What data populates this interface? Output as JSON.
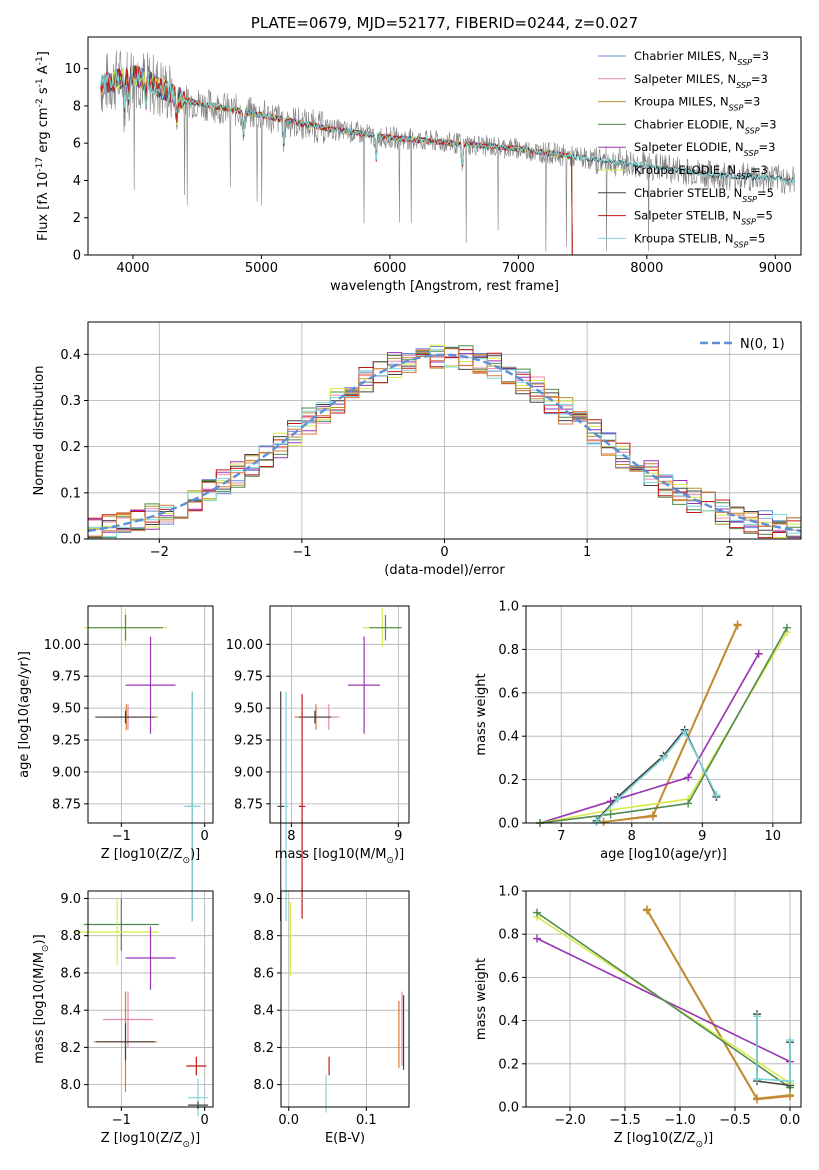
{
  "chart_data": [
    {
      "type": "line",
      "title": "PLATE=0679, MJD=52177, FIBERID=0244, z=0.027",
      "xlabel": "wavelength [Angstrom, rest frame]",
      "ylabel": "Flux [f_λ 10^-17 erg cm^-2 s^-1 A^-1]",
      "xlim": [
        3650,
        9200
      ],
      "ylim": [
        0,
        11.7
      ],
      "xticks": [
        4000,
        5000,
        6000,
        7000,
        8000,
        9000
      ],
      "yticks": [
        0,
        2,
        4,
        6,
        8,
        10
      ],
      "grid": false,
      "legend_position": "top-right",
      "data_color": "#808080",
      "continuum": [
        [
          3750,
          9.1
        ],
        [
          4000,
          9.7
        ],
        [
          4400,
          8.3
        ],
        [
          5000,
          7.5
        ],
        [
          5500,
          6.8
        ],
        [
          6000,
          6.3
        ],
        [
          6500,
          6.0
        ],
        [
          7000,
          5.7
        ],
        [
          7500,
          5.2
        ],
        [
          8000,
          4.8
        ],
        [
          8500,
          4.3
        ],
        [
          9000,
          4.1
        ],
        [
          9150,
          4.0
        ]
      ],
      "series": [
        {
          "name": "Chabrier MILES, N_SSP=3",
          "color": "#6a8cd8"
        },
        {
          "name": "Salpeter MILES, N_SSP=3",
          "color": "#e889b3"
        },
        {
          "name": "Kroupa MILES, N_SSP=3",
          "color": "#b8902e"
        },
        {
          "name": "Chabrier ELODIE, N_SSP=3",
          "color": "#4f8a4f"
        },
        {
          "name": "Salpeter ELODIE, N_SSP=3",
          "color": "#9a33b3"
        },
        {
          "name": "Kroupa ELODIE, N_SSP=3",
          "color": "#d8ea48"
        },
        {
          "name": "Chabrier STELIB, N_SSP=5",
          "color": "#444444"
        },
        {
          "name": "Salpeter STELIB, N_SSP=5",
          "color": "#c21818"
        },
        {
          "name": "Kroupa STELIB, N_SSP=5",
          "color": "#7ed6d9"
        }
      ]
    },
    {
      "type": "line",
      "xlabel": "(data-model)/error",
      "ylabel": "Normed distribution",
      "xlim": [
        -2.5,
        2.5
      ],
      "ylim": [
        0,
        0.47
      ],
      "xticks": [
        -2,
        -1,
        0,
        1,
        2
      ],
      "yticks": [
        0.0,
        0.1,
        0.2,
        0.3,
        0.4
      ],
      "grid": true,
      "legend_position": "top-right",
      "reference_curve": {
        "name": "N(0, 1)",
        "color": "#5b8fd6"
      }
    },
    {
      "type": "scatter",
      "xlabel": "Z [log10(Z/Z_⊙)]",
      "ylabel": "age  [log10(age/yr)]",
      "xlim": [
        -1.4,
        0.1
      ],
      "ylim": [
        8.6,
        10.3
      ],
      "xticks": [
        -1,
        0
      ],
      "yticks": [
        8.75,
        9.0,
        9.25,
        9.5,
        9.75,
        10.0
      ],
      "grid": true,
      "points": [
        {
          "color": "#d8ea48",
          "x": -0.95,
          "y": 10.13,
          "xerr": 0.5,
          "yerr": 0.15
        },
        {
          "color": "#4f8a4f",
          "x": -0.95,
          "y": 10.13,
          "xerr": 0.45,
          "yerr": 0.1
        },
        {
          "color": "#9a33b3",
          "x": -0.65,
          "y": 9.68,
          "xerr": 0.3,
          "yerr": 0.38
        },
        {
          "color": "#e889b3",
          "x": -0.92,
          "y": 9.43,
          "xerr": 0.2,
          "yerr": 0.1
        },
        {
          "color": "#d87a3a",
          "x": -0.94,
          "y": 9.43,
          "xerr": 0.38,
          "yerr": 0.1
        },
        {
          "color": "#444444",
          "x": -0.95,
          "y": 9.43,
          "xerr": 0.35,
          "yerr": 0.05
        },
        {
          "color": "#444444",
          "x": -0.15,
          "y": 8.73,
          "xerr": 0.05,
          "yerr": 0.9
        },
        {
          "color": "#7ed6d9",
          "x": -0.15,
          "y": 8.73,
          "xerr": 0.1,
          "yerr": 0.9
        }
      ]
    },
    {
      "type": "scatter",
      "xlabel": "mass [log10(M/M_⊙)]",
      "ylabel": "",
      "xlim": [
        7.8,
        9.1
      ],
      "ylim": [
        8.6,
        10.3
      ],
      "xticks": [
        8,
        9
      ],
      "yticks": [
        8.75,
        9.0,
        9.25,
        9.5,
        9.75,
        10.0
      ],
      "grid": true,
      "points": [
        {
          "color": "#d8ea48",
          "x": 8.85,
          "y": 10.13,
          "xerr": 0.18,
          "yerr": 0.15
        },
        {
          "color": "#4f8a4f",
          "x": 8.88,
          "y": 10.13,
          "xerr": 0.15,
          "yerr": 0.1
        },
        {
          "color": "#9a33b3",
          "x": 8.68,
          "y": 9.68,
          "xerr": 0.15,
          "yerr": 0.38
        },
        {
          "color": "#d87a3a",
          "x": 8.23,
          "y": 9.43,
          "xerr": 0.2,
          "yerr": 0.1
        },
        {
          "color": "#e889b3",
          "x": 8.35,
          "y": 9.43,
          "xerr": 0.1,
          "yerr": 0.1
        },
        {
          "color": "#444444",
          "x": 8.22,
          "y": 9.43,
          "xerr": 0.15,
          "yerr": 0.05
        },
        {
          "color": "#c21818",
          "x": 8.1,
          "y": 8.73,
          "xerr": 0.03,
          "yerr": 0.88
        },
        {
          "color": "#7ed6d9",
          "x": 7.95,
          "y": 8.73,
          "xerr": 0.02,
          "yerr": 0.9
        },
        {
          "color": "#444444",
          "x": 7.9,
          "y": 8.73,
          "xerr": 0.03,
          "yerr": 0.9
        }
      ]
    },
    {
      "type": "line",
      "xlabel": "age  [log10(age/yr)]",
      "ylabel": "mass weight",
      "xlim": [
        6.5,
        10.4
      ],
      "ylim": [
        0,
        1.0
      ],
      "xticks": [
        7,
        8,
        9,
        10
      ],
      "yticks": [
        0.0,
        0.2,
        0.4,
        0.6,
        0.8,
        1.0
      ],
      "grid": true,
      "series": [
        {
          "color": "#d87a3a",
          "x": [
            7.6,
            8.3,
            9.5
          ],
          "y": [
            0.005,
            0.03,
            0.91
          ]
        },
        {
          "color": "#b8902e",
          "x": [
            7.6,
            8.3,
            9.5
          ],
          "y": [
            0.005,
            0.035,
            0.915
          ]
        },
        {
          "color": "#9a33b3",
          "x": [
            6.7,
            7.7,
            8.8,
            9.8
          ],
          "y": [
            0.0,
            0.1,
            0.21,
            0.78
          ]
        },
        {
          "color": "#d8ea48",
          "x": [
            6.7,
            7.7,
            8.8,
            10.2
          ],
          "y": [
            0.0,
            0.06,
            0.11,
            0.88
          ]
        },
        {
          "color": "#4f8a4f",
          "x": [
            6.7,
            7.7,
            8.8,
            10.2
          ],
          "y": [
            0.0,
            0.04,
            0.09,
            0.9
          ]
        },
        {
          "color": "#444444",
          "x": [
            7.5,
            7.8,
            8.45,
            8.75,
            9.2
          ],
          "y": [
            0.01,
            0.12,
            0.31,
            0.43,
            0.12
          ]
        },
        {
          "color": "#7ed6d9",
          "x": [
            7.5,
            7.8,
            8.45,
            8.75,
            9.2
          ],
          "y": [
            0.005,
            0.11,
            0.3,
            0.42,
            0.13
          ]
        }
      ]
    },
    {
      "type": "scatter",
      "xlabel": "Z [log10(Z/Z_⊙)]",
      "ylabel": "mass [log10(M/M_⊙)]",
      "xlim": [
        -1.4,
        0.1
      ],
      "ylim": [
        7.88,
        9.04
      ],
      "xticks": [
        -1,
        0
      ],
      "yticks": [
        8.0,
        8.2,
        8.4,
        8.6,
        8.8,
        9.0
      ],
      "grid": true,
      "points": [
        {
          "color": "#4f8a4f",
          "x": -1.0,
          "y": 8.86,
          "xerr": 0.45,
          "yerr": 0.14
        },
        {
          "color": "#d8ea48",
          "x": -1.05,
          "y": 8.82,
          "xerr": 0.5,
          "yerr": 0.18
        },
        {
          "color": "#9a33b3",
          "x": -0.65,
          "y": 8.68,
          "xerr": 0.3,
          "yerr": 0.17
        },
        {
          "color": "#e889b3",
          "x": -0.92,
          "y": 8.35,
          "xerr": 0.3,
          "yerr": 0.15
        },
        {
          "color": "#d87a3a",
          "x": -0.95,
          "y": 8.23,
          "xerr": 0.38,
          "yerr": 0.27
        },
        {
          "color": "#444444",
          "x": -0.95,
          "y": 8.23,
          "xerr": 0.35,
          "yerr": 0.1
        },
        {
          "color": "#c21818",
          "x": -0.1,
          "y": 8.1,
          "xerr": 0.12,
          "yerr": 0.05
        },
        {
          "color": "#7ed6d9",
          "x": -0.08,
          "y": 7.93,
          "xerr": 0.12,
          "yerr": 0.1
        },
        {
          "color": "#444444",
          "x": -0.08,
          "y": 7.89,
          "xerr": 0.12,
          "yerr": 0.02
        }
      ]
    },
    {
      "type": "scatter",
      "xlabel": "E(B-V)",
      "ylabel": "",
      "xlim": [
        -0.01,
        0.155
      ],
      "ylim": [
        7.88,
        9.04
      ],
      "xticks": [
        0.0,
        0.1
      ],
      "yticks": [
        8.0,
        8.2,
        8.4,
        8.6,
        8.8,
        9.0
      ],
      "grid": true,
      "points": [
        {
          "color": "#d8ea48",
          "x": 0.002,
          "y": 8.78,
          "xerr": 0,
          "yerr": 0.2
        },
        {
          "color": "#7ed6d9",
          "x": 0.048,
          "y": 7.95,
          "xerr": 0,
          "yerr": 0.1
        },
        {
          "color": "#c21818",
          "x": 0.052,
          "y": 8.1,
          "xerr": 0,
          "yerr": 0.05
        },
        {
          "color": "#d87a3a",
          "x": 0.142,
          "y": 8.27,
          "xerr": 0,
          "yerr": 0.18
        },
        {
          "color": "#e889b3",
          "x": 0.146,
          "y": 8.3,
          "xerr": 0,
          "yerr": 0.2
        },
        {
          "color": "#444444",
          "x": 0.148,
          "y": 8.28,
          "xerr": 0,
          "yerr": 0.2
        }
      ]
    },
    {
      "type": "line",
      "xlabel": "Z [log10(Z/Z_⊙)]",
      "ylabel": "mass weight",
      "xlim": [
        -2.4,
        0.1
      ],
      "ylim": [
        0,
        1.0
      ],
      "xticks": [
        -2.0,
        -1.5,
        -1.0,
        -0.5,
        0.0
      ],
      "yticks": [
        0.0,
        0.2,
        0.4,
        0.6,
        0.8,
        1.0
      ],
      "grid": true,
      "series": [
        {
          "color": "#d87a3a",
          "x": [
            -1.3,
            -0.3,
            0.0
          ],
          "y": [
            0.91,
            0.035,
            0.05
          ]
        },
        {
          "color": "#b8902e",
          "x": [
            -1.3,
            -0.3,
            0.0
          ],
          "y": [
            0.915,
            0.04,
            0.055
          ]
        },
        {
          "color": "#9a33b3",
          "x": [
            -2.3,
            0.0
          ],
          "y": [
            0.78,
            0.21
          ]
        },
        {
          "color": "#d8ea48",
          "x": [
            -2.3,
            0.0
          ],
          "y": [
            0.88,
            0.11
          ]
        },
        {
          "color": "#4f8a4f",
          "x": [
            -2.3,
            0.0
          ],
          "y": [
            0.9,
            0.09
          ]
        },
        {
          "color": "#444444",
          "x": [
            -0.3,
            -0.3,
            0.0,
            0.0
          ],
          "y": [
            0.43,
            0.12,
            0.1,
            0.3
          ]
        },
        {
          "color": "#7ed6d9",
          "x": [
            -0.3,
            -0.3,
            0.0,
            0.0
          ],
          "y": [
            0.42,
            0.13,
            0.12,
            0.31
          ]
        }
      ]
    }
  ]
}
